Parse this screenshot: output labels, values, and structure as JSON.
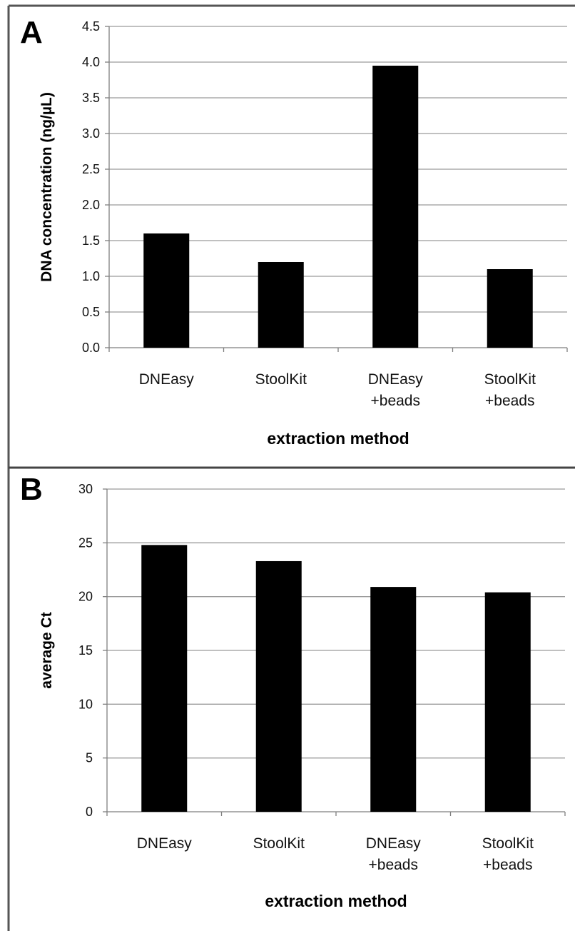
{
  "chart_data": [
    {
      "panel": "A",
      "type": "bar",
      "categories": [
        [
          "DNEasy"
        ],
        [
          "StoolKit"
        ],
        [
          "DNEasy",
          "+beads"
        ],
        [
          "StoolKit",
          "+beads"
        ]
      ],
      "values": [
        1.6,
        1.2,
        3.95,
        1.1
      ],
      "xlabel": "extraction method",
      "ylabel": "DNA concentration (ng/µL)",
      "ylim": [
        0,
        4.5
      ],
      "yticks": [
        "0.0",
        "0.5",
        "1.0",
        "1.5",
        "2.0",
        "2.5",
        "3.0",
        "3.5",
        "4.0",
        "4.5"
      ],
      "grid": true,
      "bar_color": "#000000"
    },
    {
      "panel": "B",
      "type": "bar",
      "categories": [
        [
          "DNEasy"
        ],
        [
          "StoolKit"
        ],
        [
          "DNEasy",
          "+beads"
        ],
        [
          "StoolKit",
          "+beads"
        ]
      ],
      "values": [
        24.8,
        23.3,
        20.9,
        20.4
      ],
      "xlabel": "extraction method",
      "ylabel": "average Ct",
      "ylim": [
        0,
        30
      ],
      "yticks": [
        "0",
        "5",
        "10",
        "15",
        "20",
        "25",
        "30"
      ],
      "grid": true,
      "bar_color": "#000000"
    }
  ]
}
